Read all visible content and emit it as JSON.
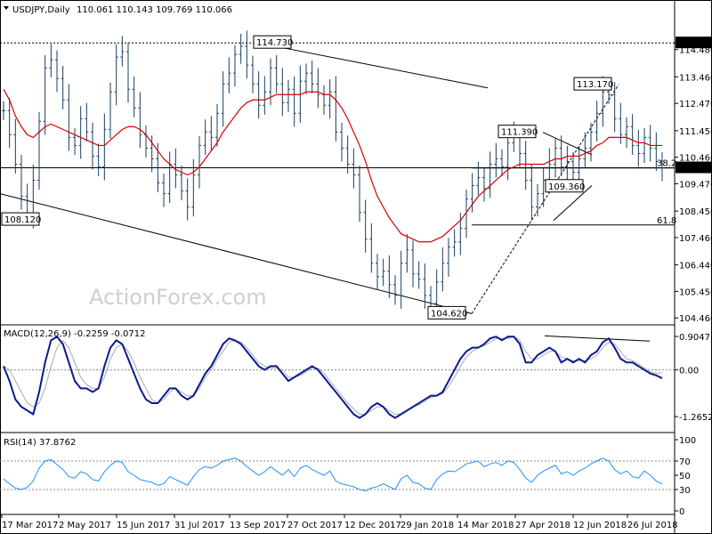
{
  "chart_data": [
    {
      "type": "ohlc",
      "title": "USDJPY,Daily",
      "ohlc_header": "110.061 110.143 109.769 110.066",
      "last_price": "110.066",
      "watermark": "ActionForex.com",
      "y_ticks": [
        "114.730",
        "114.480",
        "113.460",
        "112.470",
        "111.450",
        "110.460",
        "109.470",
        "108.450",
        "107.460",
        "106.440",
        "105.450",
        "104.460"
      ],
      "x_ticks": [
        "17 Mar 2017",
        "2 May 2017",
        "15 Jun 2017",
        "31 Jul 2017",
        "13 Sep 2017",
        "27 Oct 2017",
        "12 Dec 2017",
        "29 Jan 2018",
        "14 Mar 2018",
        "27 Apr 2018",
        "12 Jun 2018",
        "26 Jul 2018"
      ],
      "ylim": [
        104.3,
        115.8
      ],
      "annotations": [
        {
          "text": "114.730",
          "price": 114.73
        },
        {
          "text": "108.120",
          "price": 108.12
        },
        {
          "text": "104.620",
          "price": 104.62
        },
        {
          "text": "111.390",
          "price": 111.39
        },
        {
          "text": "109.360",
          "price": 109.36
        },
        {
          "text": "113.170",
          "price": 113.17
        },
        {
          "text": "38.2",
          "price": 110.06
        },
        {
          "text": "61.8",
          "price": 107.93
        }
      ],
      "price_path": [
        112.2,
        111.3,
        110.2,
        109.0,
        108.3,
        109.6,
        111.8,
        113.8,
        114.1,
        113.4,
        112.6,
        111.2,
        110.9,
        111.9,
        111.4,
        110.5,
        110.1,
        111.5,
        112.9,
        114.2,
        114.4,
        113.0,
        112.3,
        111.3,
        110.8,
        110.4,
        109.5,
        109.1,
        110.2,
        109.8,
        109.2,
        108.6,
        109.8,
        110.9,
        111.4,
        111.2,
        112.1,
        113.2,
        113.6,
        114.3,
        114.6,
        113.9,
        113.2,
        112.4,
        112.9,
        113.8,
        113.2,
        112.5,
        113.0,
        112.1,
        113.3,
        113.6,
        113.2,
        112.8,
        112.4,
        112.9,
        111.4,
        110.8,
        110.2,
        109.8,
        108.4,
        107.4,
        106.5,
        106.0,
        106.2,
        105.7,
        105.3,
        106.5,
        107.0,
        106.1,
        105.9,
        105.3,
        105.0,
        105.8,
        106.5,
        107.1,
        107.3,
        107.8,
        108.9,
        109.4,
        109.7,
        109.3,
        110.2,
        110.4,
        110.1,
        111.0,
        111.2,
        110.6,
        109.6,
        108.6,
        109.1,
        109.6,
        110.2,
        110.8,
        110.1,
        110.3,
        109.9,
        110.4,
        110.8,
        111.4,
        112.1,
        112.9,
        112.8,
        111.9,
        111.3,
        111.6,
        110.9,
        110.6,
        111.2,
        110.8,
        110.3,
        110.066
      ],
      "ma_path": [
        113.0,
        112.6,
        112.0,
        111.6,
        111.3,
        111.2,
        111.4,
        111.6,
        111.7,
        111.6,
        111.5,
        111.4,
        111.3,
        111.2,
        111.1,
        111.0,
        110.9,
        110.9,
        111.1,
        111.3,
        111.5,
        111.6,
        111.6,
        111.5,
        111.3,
        111.0,
        110.7,
        110.4,
        110.2,
        110.0,
        109.9,
        109.8,
        109.9,
        110.1,
        110.4,
        110.7,
        111.0,
        111.4,
        111.7,
        112.0,
        112.3,
        112.5,
        112.6,
        112.6,
        112.6,
        112.7,
        112.8,
        112.8,
        112.8,
        112.8,
        112.8,
        112.9,
        112.9,
        112.9,
        112.8,
        112.8,
        112.6,
        112.3,
        111.9,
        111.4,
        110.9,
        110.3,
        109.6,
        109.0,
        108.6,
        108.2,
        107.9,
        107.6,
        107.5,
        107.4,
        107.3,
        107.3,
        107.3,
        107.4,
        107.5,
        107.7,
        107.9,
        108.1,
        108.4,
        108.7,
        109.0,
        109.2,
        109.4,
        109.6,
        109.8,
        110.0,
        110.1,
        110.2,
        110.2,
        110.2,
        110.2,
        110.2,
        110.3,
        110.4,
        110.4,
        110.5,
        110.5,
        110.5,
        110.6,
        110.7,
        110.9,
        111.0,
        111.2,
        111.2,
        111.2,
        111.2,
        111.1,
        111.0,
        111.0,
        110.9,
        110.9,
        110.9
      ]
    },
    {
      "type": "line",
      "title": "MACD(12,26,9) -0.2259 -0.0712",
      "y_ticks": [
        "0.9047",
        "0.00",
        "-1.2652"
      ],
      "ylim": [
        -1.6,
        1.05
      ],
      "macd": [
        0.1,
        -0.3,
        -0.8,
        -1.0,
        -1.1,
        -1.2,
        -0.6,
        0.2,
        0.8,
        0.9,
        0.7,
        0.2,
        -0.3,
        -0.5,
        -0.5,
        -0.6,
        -0.5,
        0.1,
        0.6,
        0.8,
        0.7,
        0.3,
        -0.1,
        -0.5,
        -0.8,
        -0.9,
        -0.9,
        -0.7,
        -0.5,
        -0.5,
        -0.7,
        -0.8,
        -0.7,
        -0.4,
        -0.1,
        0.1,
        0.4,
        0.7,
        0.85,
        0.8,
        0.7,
        0.5,
        0.3,
        0.1,
        0.0,
        0.1,
        0.1,
        -0.1,
        -0.3,
        -0.2,
        -0.1,
        0.0,
        0.1,
        0.0,
        -0.2,
        -0.4,
        -0.6,
        -0.8,
        -1.0,
        -1.2,
        -1.3,
        -1.2,
        -1.0,
        -0.9,
        -1.0,
        -1.2,
        -1.3,
        -1.2,
        -1.1,
        -1.0,
        -0.9,
        -0.8,
        -0.7,
        -0.7,
        -0.6,
        -0.3,
        0.0,
        0.3,
        0.5,
        0.6,
        0.6,
        0.7,
        0.85,
        0.9,
        0.8,
        0.9,
        0.9,
        0.7,
        0.2,
        0.2,
        0.4,
        0.5,
        0.6,
        0.5,
        0.2,
        0.3,
        0.2,
        0.3,
        0.2,
        0.4,
        0.5,
        0.75,
        0.85,
        0.6,
        0.3,
        0.2,
        0.2,
        0.1,
        0.0,
        -0.1,
        -0.15,
        -0.2259
      ],
      "signal": [
        0.1,
        0.0,
        -0.3,
        -0.6,
        -0.9,
        -1.0,
        -0.9,
        -0.5,
        0.1,
        0.6,
        0.8,
        0.6,
        0.2,
        -0.2,
        -0.4,
        -0.5,
        -0.5,
        -0.2,
        0.3,
        0.6,
        0.7,
        0.5,
        0.2,
        -0.2,
        -0.5,
        -0.8,
        -0.9,
        -0.8,
        -0.6,
        -0.5,
        -0.6,
        -0.7,
        -0.7,
        -0.5,
        -0.2,
        0.0,
        0.3,
        0.5,
        0.75,
        0.8,
        0.75,
        0.6,
        0.4,
        0.2,
        0.1,
        0.05,
        0.05,
        0.0,
        -0.2,
        -0.2,
        -0.15,
        -0.05,
        0.05,
        0.05,
        -0.1,
        -0.3,
        -0.5,
        -0.7,
        -0.9,
        -1.05,
        -1.2,
        -1.2,
        -1.1,
        -1.0,
        -1.0,
        -1.1,
        -1.2,
        -1.2,
        -1.1,
        -1.0,
        -0.95,
        -0.85,
        -0.75,
        -0.7,
        -0.65,
        -0.45,
        -0.2,
        0.1,
        0.35,
        0.5,
        0.6,
        0.65,
        0.75,
        0.85,
        0.85,
        0.85,
        0.9,
        0.8,
        0.5,
        0.3,
        0.3,
        0.4,
        0.5,
        0.5,
        0.35,
        0.3,
        0.25,
        0.25,
        0.25,
        0.3,
        0.4,
        0.6,
        0.75,
        0.7,
        0.5,
        0.3,
        0.25,
        0.15,
        0.05,
        -0.05,
        -0.1,
        -0.0712
      ]
    },
    {
      "type": "line",
      "title": "RSI(14) 37.8762",
      "y_ticks": [
        "100",
        "70",
        "50",
        "30",
        "0"
      ],
      "ylim": [
        0,
        100
      ],
      "values": [
        45,
        38,
        32,
        30,
        33,
        42,
        60,
        70,
        72,
        65,
        58,
        48,
        46,
        55,
        52,
        44,
        42,
        55,
        64,
        70,
        68,
        55,
        50,
        44,
        42,
        40,
        36,
        38,
        48,
        44,
        40,
        36,
        48,
        58,
        62,
        60,
        64,
        70,
        72,
        74,
        70,
        62,
        56,
        50,
        55,
        62,
        56,
        50,
        58,
        48,
        60,
        64,
        58,
        54,
        50,
        56,
        42,
        38,
        36,
        34,
        30,
        28,
        32,
        34,
        38,
        34,
        30,
        45,
        50,
        40,
        38,
        32,
        30,
        44,
        52,
        56,
        55,
        60,
        66,
        68,
        70,
        62,
        66,
        68,
        64,
        70,
        68,
        58,
        46,
        40,
        50,
        56,
        60,
        64,
        52,
        55,
        50,
        56,
        60,
        66,
        70,
        74,
        70,
        58,
        52,
        56,
        48,
        46,
        56,
        50,
        42,
        37.8762
      ]
    }
  ]
}
